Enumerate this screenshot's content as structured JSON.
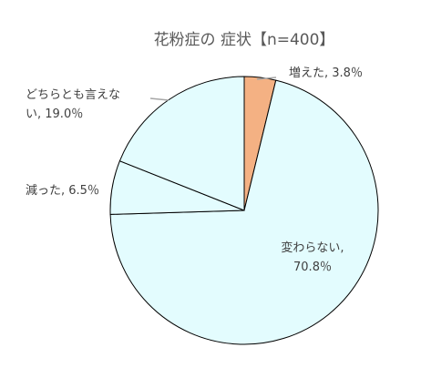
{
  "chart_data": {
    "type": "pie",
    "title": "花粉症の 症状【n=400】",
    "slices": [
      {
        "label": "増えた",
        "value": 3.8,
        "display": "3.8％",
        "color": "#F4B183"
      },
      {
        "label": "変わらない",
        "value": 70.8,
        "display": "70.8％",
        "color": "#E3FCFE"
      },
      {
        "label": "減った",
        "value": 6.5,
        "display": "6.5％",
        "color": "#E3FCFE"
      },
      {
        "label": "どちらとも言えない",
        "value": 19.0,
        "display": "19.0％",
        "color": "#E3FCFE"
      }
    ],
    "data_labels": [
      {
        "lines": [
          "増えた, 3.8％"
        ]
      },
      {
        "lines": [
          "変わらない,",
          "70.8％"
        ]
      },
      {
        "lines": [
          "減った, 6.5％"
        ]
      },
      {
        "lines": [
          "どちらとも言えな",
          "い, 19.0％"
        ]
      }
    ],
    "legend": "none",
    "start_angle": "12 o'clock, clockwise",
    "border_color": "#000000",
    "leader_line_color": "#A6A6A6"
  }
}
